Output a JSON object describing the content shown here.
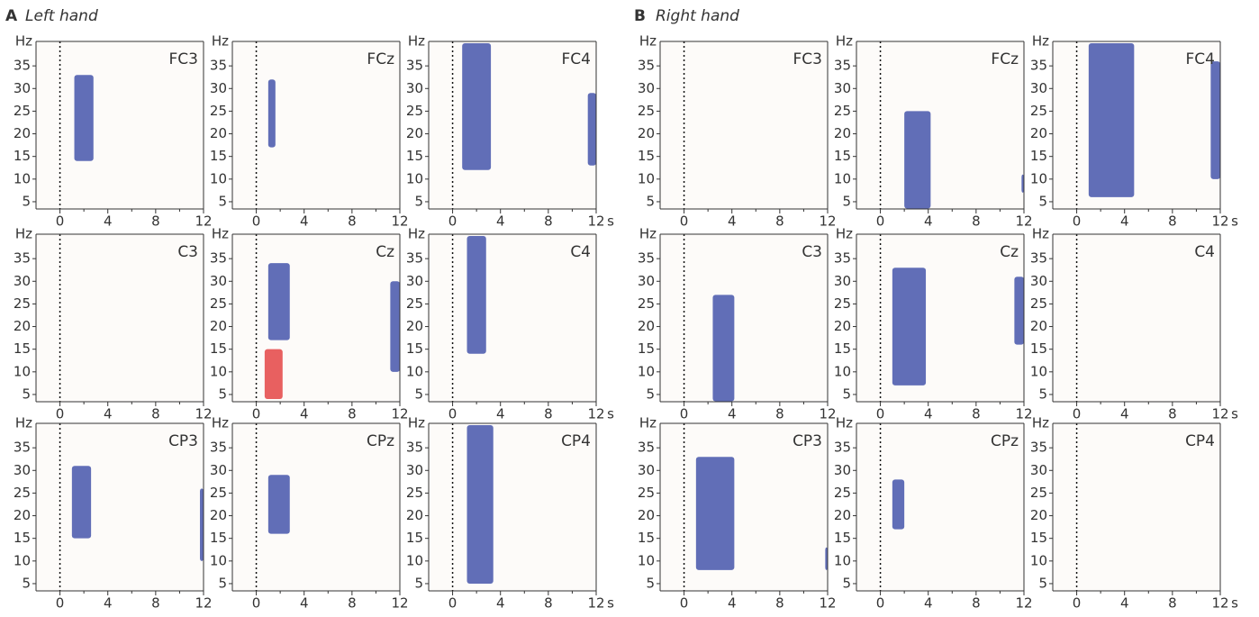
{
  "panel_labels": [
    {
      "letter": "A",
      "title": "Left hand"
    },
    {
      "letter": "B",
      "title": "Right hand"
    }
  ],
  "axes": {
    "xlim": [
      -2,
      12
    ],
    "ylim": [
      3.4,
      40.4
    ],
    "xticks": [
      0,
      4,
      8,
      12
    ],
    "xminor": [
      2,
      6,
      10
    ],
    "yticks": [
      5,
      10,
      15,
      20,
      25,
      30,
      35
    ],
    "ylabel": "Hz",
    "xlabel": "s",
    "onset": 0
  },
  "chart_data": [
    {
      "type": "spectrogram",
      "title": "FC3",
      "clusters": [
        {
          "time": [
            1.2,
            2.8
          ],
          "freq": [
            14,
            33
          ],
          "color": "#3a4ba6"
        }
      ]
    },
    {
      "type": "spectrogram",
      "title": "FCz",
      "clusters": [
        {
          "time": [
            1.0,
            1.6
          ],
          "freq": [
            17,
            32
          ],
          "color": "#3a4ba6"
        }
      ]
    },
    {
      "type": "spectrogram",
      "title": "FC4",
      "clusters": [
        {
          "time": [
            0.8,
            3.2
          ],
          "freq": [
            12,
            40
          ],
          "color": "#3a4ba6"
        },
        {
          "time": [
            11.3,
            12
          ],
          "freq": [
            13,
            29
          ],
          "color": "#3a4ba6"
        }
      ]
    },
    {
      "type": "spectrogram",
      "title": "C3",
      "clusters": []
    },
    {
      "type": "spectrogram",
      "title": "Cz",
      "clusters": [
        {
          "time": [
            1.0,
            2.8
          ],
          "freq": [
            17,
            34
          ],
          "color": "#3a4ba6"
        },
        {
          "time": [
            11.2,
            12
          ],
          "freq": [
            10,
            30
          ],
          "color": "#3a4ba6"
        },
        {
          "time": [
            0.7,
            2.2
          ],
          "freq": [
            4,
            15
          ],
          "color": "#e23a3a"
        }
      ]
    },
    {
      "type": "spectrogram",
      "title": "C4",
      "clusters": [
        {
          "time": [
            1.2,
            2.8
          ],
          "freq": [
            14,
            40
          ],
          "color": "#3a4ba6"
        }
      ]
    },
    {
      "type": "spectrogram",
      "title": "CP3",
      "clusters": [
        {
          "time": [
            1.0,
            2.6
          ],
          "freq": [
            15,
            31
          ],
          "color": "#3a4ba6"
        },
        {
          "time": [
            11.7,
            12
          ],
          "freq": [
            10,
            26
          ],
          "color": "#3a4ba6"
        }
      ]
    },
    {
      "type": "spectrogram",
      "title": "CPz",
      "clusters": [
        {
          "time": [
            1.0,
            2.8
          ],
          "freq": [
            16,
            29
          ],
          "color": "#3a4ba6"
        }
      ]
    },
    {
      "type": "spectrogram",
      "title": "CP4",
      "clusters": [
        {
          "time": [
            1.2,
            3.4
          ],
          "freq": [
            5,
            40
          ],
          "color": "#3a4ba6"
        }
      ]
    },
    {
      "type": "spectrogram",
      "title": "FC3",
      "clusters": []
    },
    {
      "type": "spectrogram",
      "title": "FCz",
      "clusters": [
        {
          "time": [
            2.0,
            4.2
          ],
          "freq": [
            3.5,
            25
          ],
          "color": "#3a4ba6"
        },
        {
          "time": [
            11.8,
            12
          ],
          "freq": [
            7,
            11
          ],
          "color": "#3a4ba6"
        }
      ]
    },
    {
      "type": "spectrogram",
      "title": "FC4",
      "clusters": [
        {
          "time": [
            1.0,
            4.8
          ],
          "freq": [
            6,
            40
          ],
          "color": "#3a4ba6"
        },
        {
          "time": [
            11.2,
            12
          ],
          "freq": [
            10,
            36
          ],
          "color": "#3a4ba6"
        }
      ]
    },
    {
      "type": "spectrogram",
      "title": "C3",
      "clusters": [
        {
          "time": [
            2.4,
            4.2
          ],
          "freq": [
            3.5,
            27
          ],
          "color": "#3a4ba6"
        }
      ]
    },
    {
      "type": "spectrogram",
      "title": "Cz",
      "clusters": [
        {
          "time": [
            1.0,
            3.8
          ],
          "freq": [
            7,
            33
          ],
          "color": "#3a4ba6"
        },
        {
          "time": [
            11.2,
            12
          ],
          "freq": [
            16,
            31
          ],
          "color": "#3a4ba6"
        }
      ]
    },
    {
      "type": "spectrogram",
      "title": "C4",
      "clusters": []
    },
    {
      "type": "spectrogram",
      "title": "CP3",
      "clusters": [
        {
          "time": [
            1.0,
            4.2
          ],
          "freq": [
            8,
            33
          ],
          "color": "#3a4ba6"
        },
        {
          "time": [
            11.8,
            12
          ],
          "freq": [
            8,
            13
          ],
          "color": "#3a4ba6"
        }
      ]
    },
    {
      "type": "spectrogram",
      "title": "CPz",
      "clusters": [
        {
          "time": [
            1.0,
            2.0
          ],
          "freq": [
            17,
            28
          ],
          "color": "#3a4ba6"
        }
      ]
    },
    {
      "type": "spectrogram",
      "title": "CP4",
      "clusters": []
    }
  ]
}
